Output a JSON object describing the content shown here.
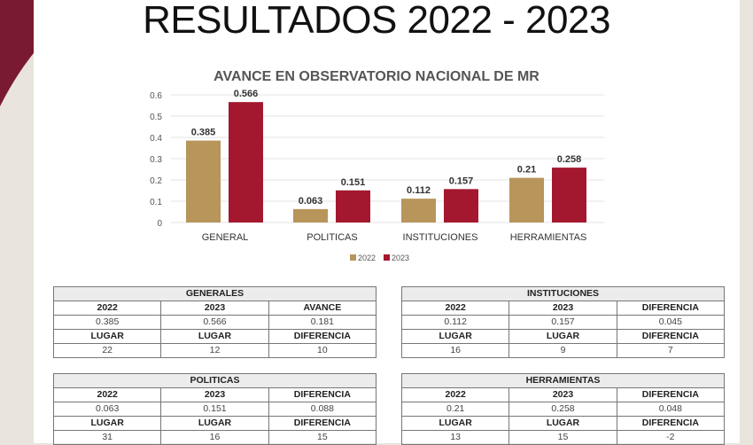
{
  "title": "RESULTADOS 2022 - 2023",
  "chart_data": {
    "type": "bar",
    "title": "AVANCE EN OBSERVATORIO NACIONAL DE MR",
    "categories": [
      "GENERAL",
      "POLITICAS",
      "INSTITUCIONES",
      "HERRAMIENTAS"
    ],
    "series": [
      {
        "name": "2022",
        "values": [
          0.385,
          0.063,
          0.112,
          0.21
        ],
        "labels": [
          "0.385",
          "0.063",
          "0.112",
          "0.21"
        ],
        "color": "#b8955b"
      },
      {
        "name": "2023",
        "values": [
          0.566,
          0.151,
          0.157,
          0.258
        ],
        "labels": [
          "0.566",
          "0.151",
          "0.157",
          "0.258"
        ],
        "color": "#a3182f"
      }
    ],
    "yticks": [
      "0",
      "0.1",
      "0.2",
      "0.3",
      "0.4",
      "0.5",
      "0.6"
    ],
    "ylim": [
      0,
      0.6
    ],
    "grid": true,
    "legend": "bottom"
  },
  "tables": [
    {
      "title": "GENERALES",
      "rows": [
        [
          "2022",
          "2023",
          "AVANCE"
        ],
        [
          "0.385",
          "0.566",
          "0.181"
        ],
        [
          "LUGAR",
          "LUGAR",
          "DIFERENCIA"
        ],
        [
          "22",
          "12",
          "10"
        ]
      ]
    },
    {
      "title": "POLITICAS",
      "rows": [
        [
          "2022",
          "2023",
          "DIFERENCIA"
        ],
        [
          "0.063",
          "0.151",
          "0.088"
        ],
        [
          "LUGAR",
          "LUGAR",
          "DIFERENCIA"
        ],
        [
          "31",
          "16",
          "15"
        ]
      ]
    },
    {
      "title": "INSTITUCIONES",
      "rows": [
        [
          "2022",
          "2023",
          "DIFERENCIA"
        ],
        [
          "0.112",
          "0.157",
          "0.045"
        ],
        [
          "LUGAR",
          "LUGAR",
          "DIFERENCIA"
        ],
        [
          "16",
          "9",
          "7"
        ]
      ]
    },
    {
      "title": "HERRAMIENTAS",
      "rows": [
        [
          "2022",
          "2023",
          "DIFERENCIA"
        ],
        [
          "0.21",
          "0.258",
          "0.048"
        ],
        [
          "LUGAR",
          "LUGAR",
          "DIFERENCIA"
        ],
        [
          "13",
          "15",
          "-2"
        ]
      ]
    }
  ],
  "colors": {
    "maroon": "#7a1a30",
    "gold": "#b8955b",
    "red": "#a3182f"
  }
}
